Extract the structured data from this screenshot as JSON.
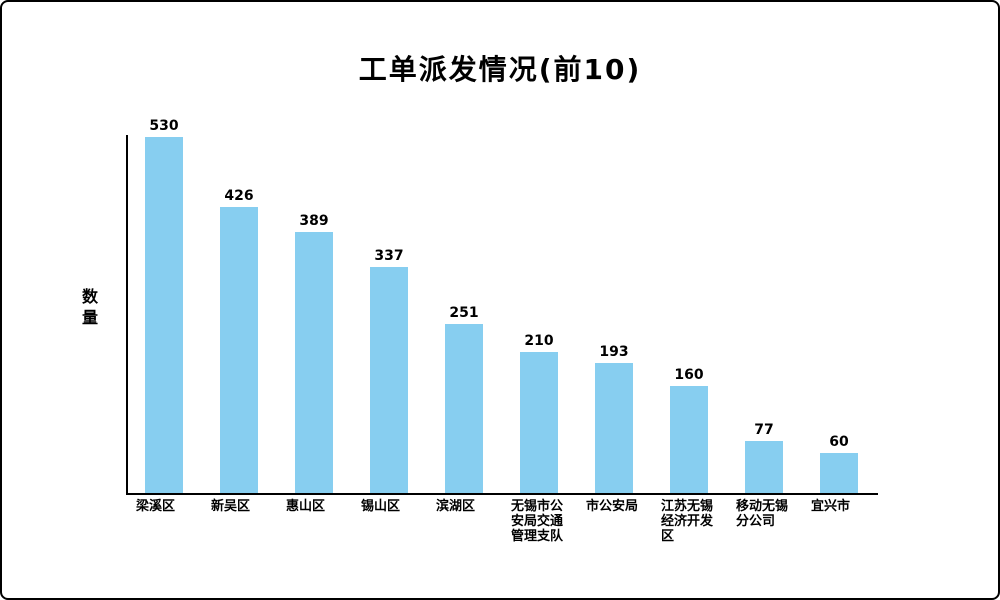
{
  "chart_data": {
    "type": "bar",
    "title": "工单派发情况(前10)",
    "xlabel": "",
    "ylabel": "数量",
    "categories": [
      "梁溪区",
      "新吴区",
      "惠山区",
      "锡山区",
      "滨湖区",
      "无锡市公安局交通管理支队",
      "市公安局",
      "江苏无锡经济开发区",
      "移动无锡分公司",
      "宜兴市"
    ],
    "values": [
      530,
      426,
      389,
      337,
      251,
      210,
      193,
      160,
      77,
      60
    ],
    "ylim": [
      0,
      530
    ],
    "grid": false,
    "legend": false,
    "value_labels_shown": true,
    "bar_color": "#87CEF0",
    "axis_color": "#000000",
    "text_color": "#000000",
    "background_color": "#ffffff"
  }
}
